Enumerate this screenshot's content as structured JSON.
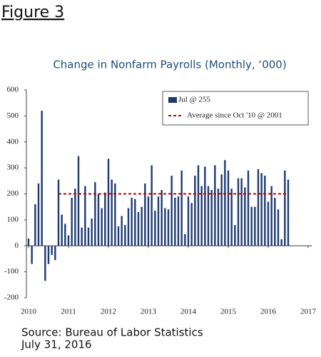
{
  "figure_label": "Figure 3",
  "chart_data": {
    "type": "bar",
    "title": "Change in Nonfarm Payrolls (Monthly, ‘000)",
    "series": [
      {
        "name": "Jul @ 255",
        "color": "#1f3a6e",
        "type": "bar",
        "values": [
          28,
          -70,
          160,
          240,
          520,
          -135,
          -70,
          -35,
          -55,
          255,
          120,
          85,
          40,
          185,
          220,
          345,
          70,
          230,
          70,
          105,
          245,
          200,
          145,
          205,
          335,
          255,
          240,
          75,
          115,
          80,
          145,
          185,
          180,
          130,
          150,
          240,
          190,
          310,
          135,
          190,
          215,
          145,
          140,
          270,
          185,
          190,
          290,
          45,
          190,
          165,
          270,
          310,
          230,
          305,
          230,
          215,
          310,
          220,
          275,
          330,
          290,
          220,
          80,
          260,
          260,
          225,
          290,
          150,
          150,
          295,
          280,
          270,
          170,
          230,
          185,
          140,
          25,
          290,
          255
        ]
      },
      {
        "name": "Average since Oct '10 @ 2001",
        "color": "#c00000",
        "type": "line",
        "values": [
          null,
          null,
          null,
          null,
          null,
          null,
          null,
          null,
          null,
          200,
          200,
          200,
          200,
          200,
          200,
          200,
          200,
          200,
          200,
          200,
          200,
          200,
          200,
          200,
          200,
          200,
          200,
          200,
          200,
          200,
          200,
          200,
          200,
          200,
          200,
          200,
          200,
          200,
          200,
          200,
          200,
          200,
          200,
          200,
          200,
          200,
          200,
          200,
          200,
          200,
          200,
          200,
          200,
          200,
          200,
          200,
          200,
          200,
          200,
          200,
          200,
          200,
          200,
          200,
          200,
          200,
          200,
          200,
          200,
          200,
          200,
          200,
          200,
          200,
          200,
          200,
          200,
          200,
          200
        ]
      }
    ],
    "xlim": [
      2010,
      2017
    ],
    "xticks": [
      2010,
      2011,
      2012,
      2013,
      2014,
      2015,
      2016,
      2017
    ],
    "ylim": [
      -200,
      600
    ],
    "yticks": [
      -200,
      -100,
      0,
      100,
      200,
      300,
      400,
      500,
      600
    ],
    "legend": "top-right"
  },
  "source": {
    "line1": "Source: Bureau of Labor Statistics",
    "line2": "July 31, 2016"
  }
}
